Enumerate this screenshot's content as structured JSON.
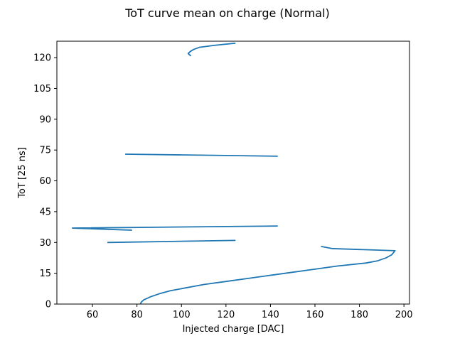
{
  "chart_data": {
    "type": "line",
    "title": "ToT curve mean on charge (Normal)",
    "xlabel": "Injected charge [DAC]",
    "ylabel": "ToT [25 ns]",
    "xlim": [
      44,
      202.5
    ],
    "ylim": [
      0,
      128
    ],
    "xticks": [
      60,
      80,
      100,
      120,
      140,
      160,
      180,
      200
    ],
    "yticks": [
      0,
      15,
      30,
      45,
      60,
      75,
      90,
      105,
      120
    ],
    "grid": false,
    "line_color": "#1f77b4",
    "series": [
      {
        "points": [
          [
            81.5,
            0
          ],
          [
            82,
            1
          ],
          [
            83,
            2
          ],
          [
            86,
            3.5
          ],
          [
            90,
            5
          ],
          [
            95,
            6.5
          ],
          [
            100,
            7.5
          ],
          [
            110,
            9.5
          ],
          [
            120,
            11
          ],
          [
            130,
            12.5
          ],
          [
            140,
            14
          ],
          [
            150,
            15.5
          ],
          [
            160,
            17
          ],
          [
            170,
            18.5
          ],
          [
            183,
            20
          ],
          [
            188,
            21
          ],
          [
            192,
            22.5
          ],
          [
            194.5,
            24
          ],
          [
            196,
            26
          ],
          [
            168,
            27
          ],
          [
            163,
            28
          ]
        ]
      },
      {
        "points": [
          [
            67,
            30
          ],
          [
            124,
            31
          ]
        ]
      },
      {
        "points": [
          [
            77.5,
            36
          ],
          [
            51,
            37
          ],
          [
            143,
            38
          ]
        ]
      },
      {
        "points": [
          [
            75,
            73
          ],
          [
            143,
            72
          ]
        ]
      },
      {
        "points": [
          [
            124,
            127
          ],
          [
            115,
            126
          ],
          [
            108,
            125
          ],
          [
            105.5,
            124
          ],
          [
            104,
            123
          ],
          [
            103,
            122
          ],
          [
            104,
            121
          ]
        ]
      }
    ]
  }
}
